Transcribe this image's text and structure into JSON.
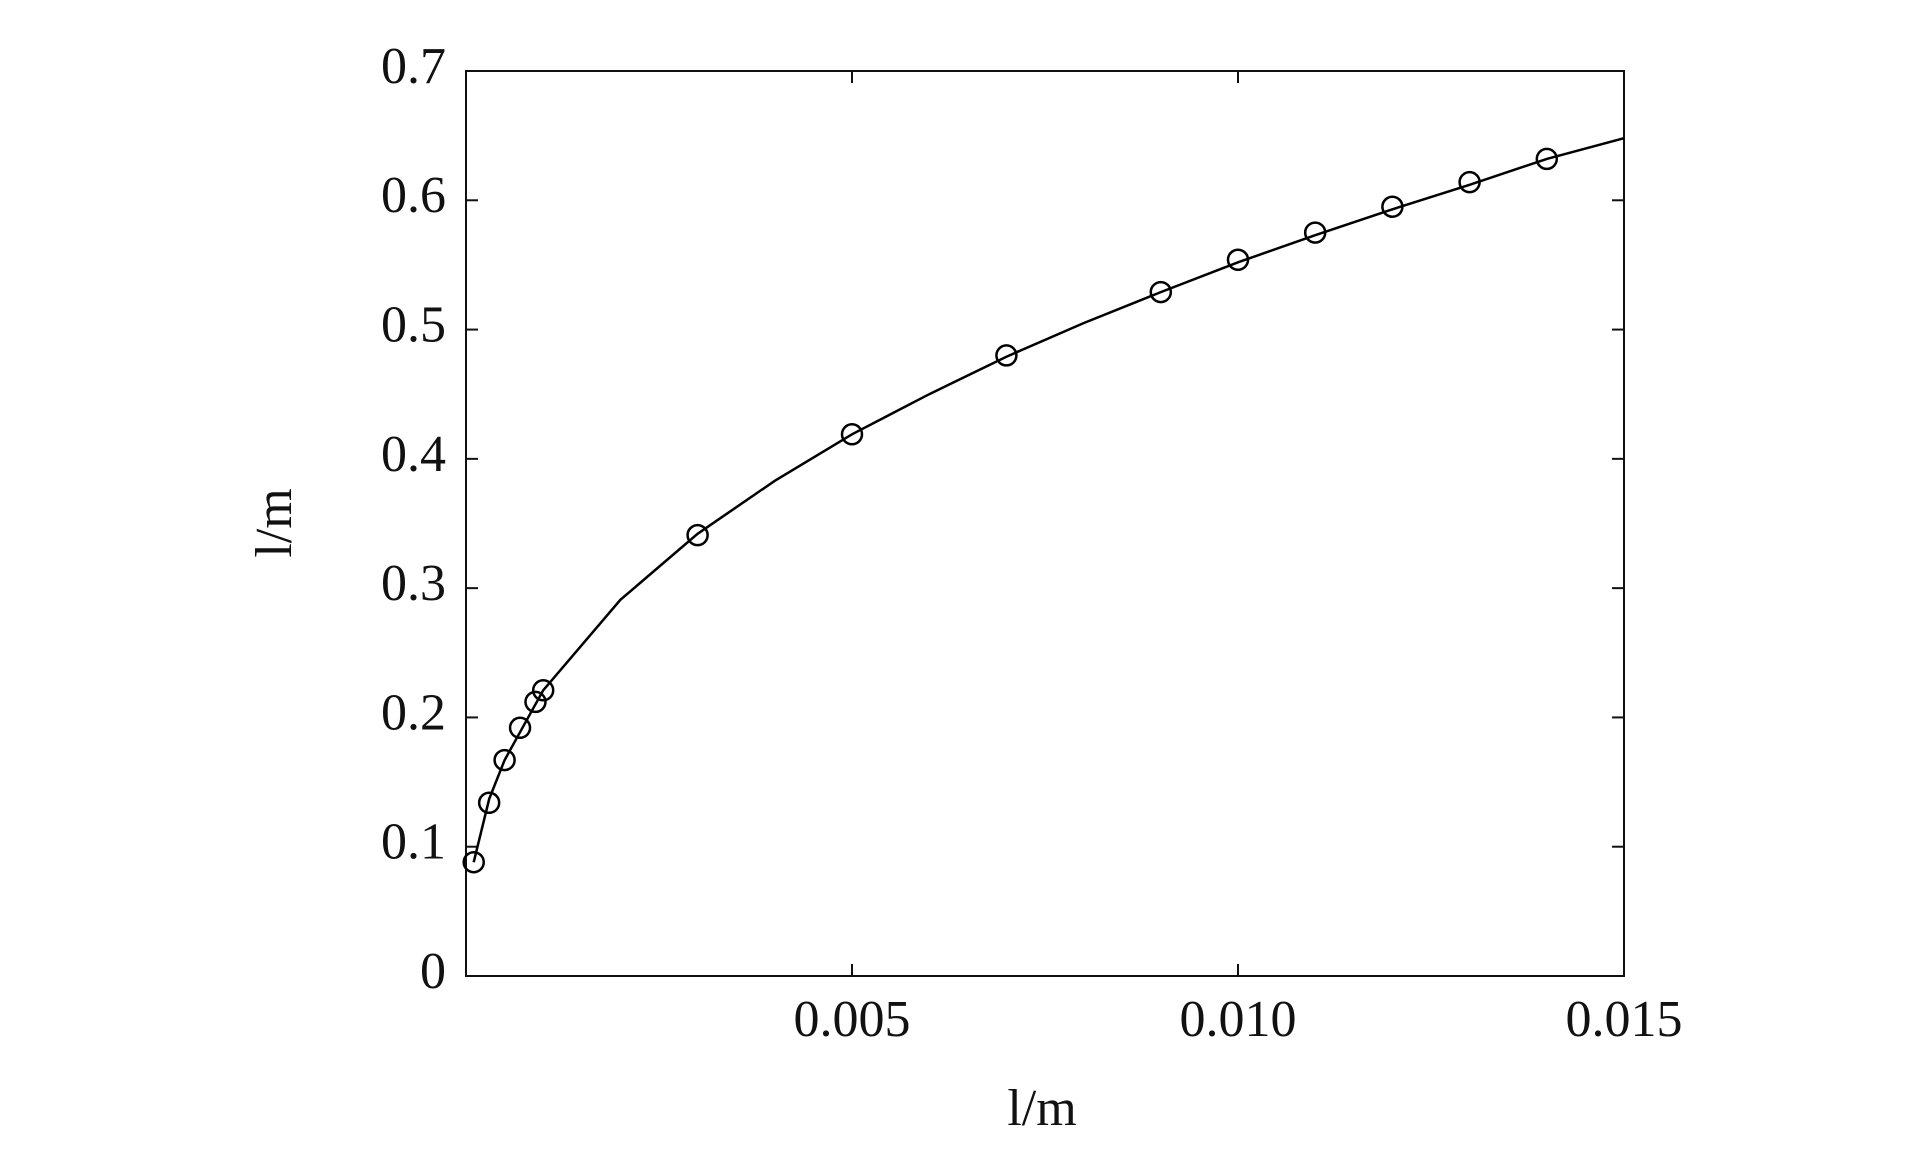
{
  "chart_data": {
    "type": "scatter",
    "x_label": "l/m",
    "y_label": "l/m",
    "xlim": [
      0,
      0.015
    ],
    "xticks": [
      0.005,
      {
        "value": 0.01,
        "label": "0.010"
      },
      0.015
    ],
    "ylim": [
      0,
      0.7
    ],
    "yticks": [
      0,
      0.1,
      0.2,
      0.3,
      0.4,
      0.5,
      0.6,
      0.7
    ],
    "grid": false,
    "series": [
      {
        "kind": "line",
        "color": "#000000",
        "x": [
          0.0001,
          0.0003,
          0.0005,
          0.001,
          0.002,
          0.003,
          0.004,
          0.005,
          0.006,
          0.007,
          0.008,
          0.009,
          0.01,
          0.011,
          0.012,
          0.013,
          0.014,
          0.015
        ],
        "values": [
          0.088,
          0.137,
          0.167,
          0.221,
          0.291,
          0.342,
          0.383,
          0.419,
          0.45,
          0.479,
          0.505,
          0.529,
          0.552,
          0.573,
          0.593,
          0.612,
          0.632,
          0.648
        ]
      },
      {
        "kind": "marker",
        "color": "#000000",
        "x": [
          0.0001,
          0.0003,
          0.0005,
          0.0007,
          0.0009,
          0.001,
          0.003,
          0.005,
          0.007,
          0.009,
          0.01,
          0.011,
          0.012,
          0.013,
          0.014
        ],
        "values": [
          0.088,
          0.134,
          0.167,
          0.192,
          0.212,
          0.221,
          0.341,
          0.419,
          0.48,
          0.529,
          0.554,
          0.575,
          0.595,
          0.614,
          0.632
        ]
      }
    ]
  }
}
